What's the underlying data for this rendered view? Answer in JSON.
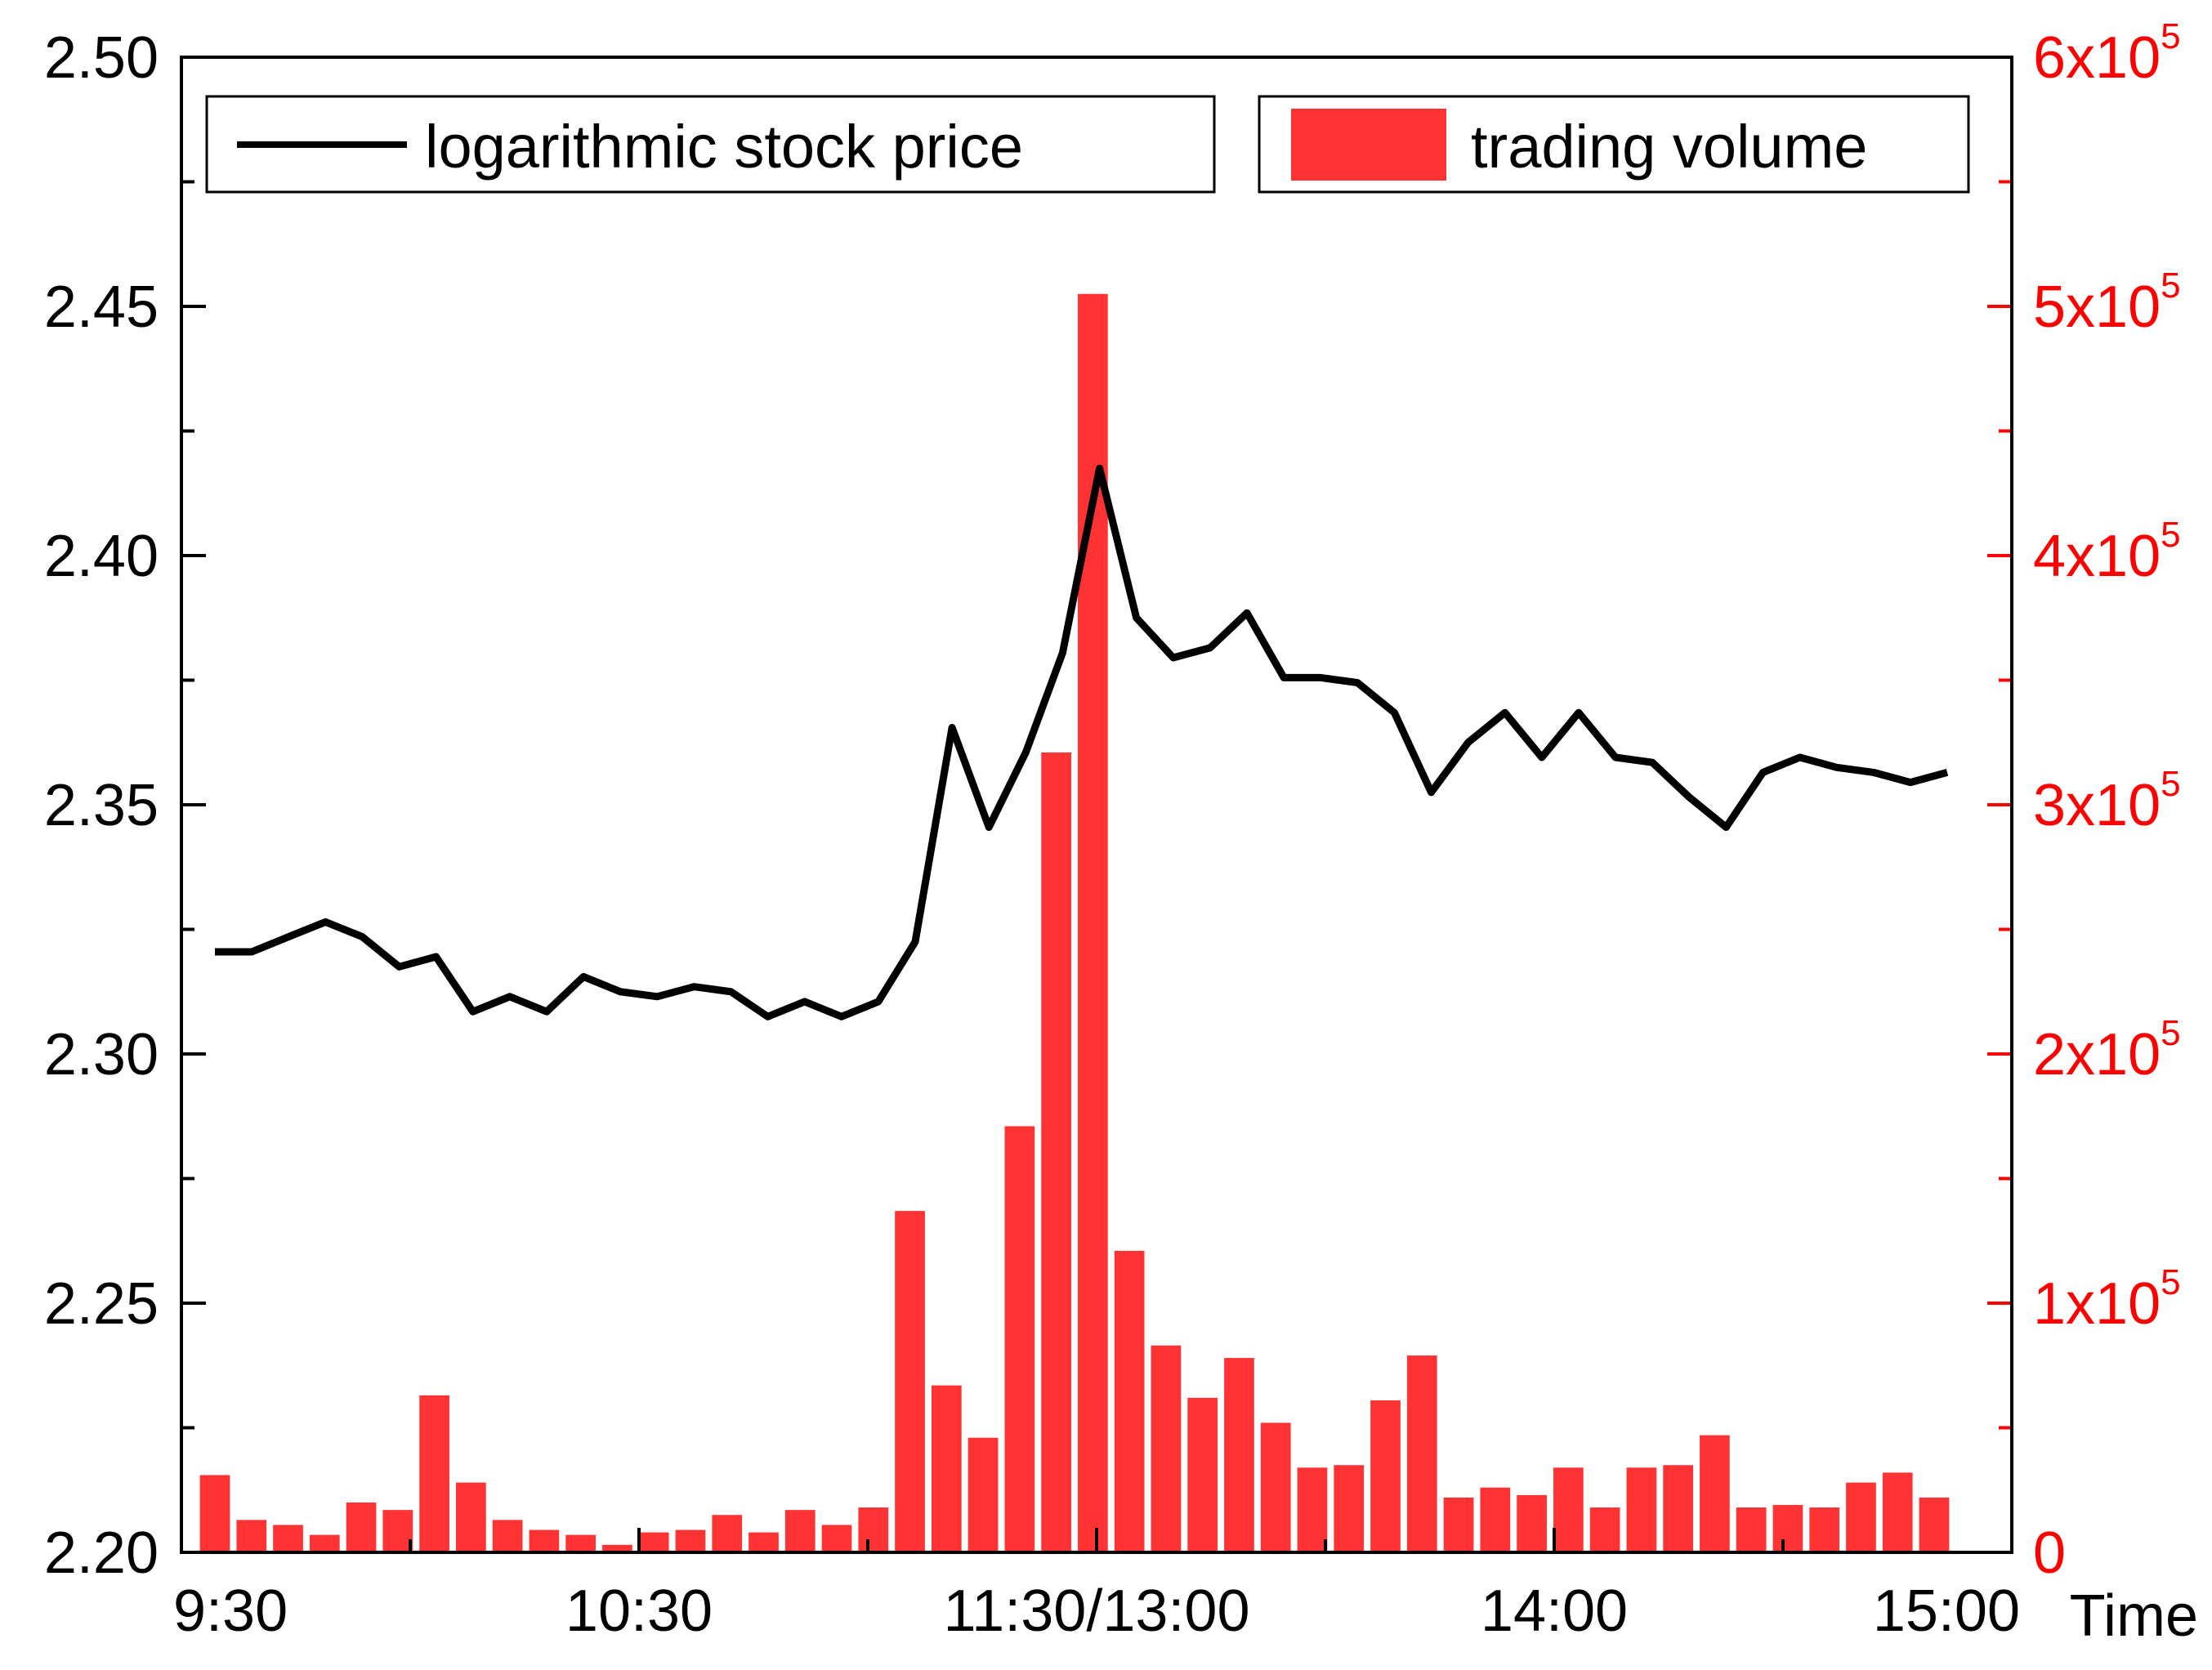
{
  "chart_data": {
    "type": "bar+line",
    "xlabel": "Time",
    "x_ticks": [
      "9:30",
      "10:30",
      "11:30/13:00",
      "14:00",
      "15:00"
    ],
    "y_left": {
      "ylim": [
        2.2,
        2.5
      ],
      "ticks": [
        "2.20",
        "2.25",
        "2.30",
        "2.35",
        "2.40",
        "2.45",
        "2.50"
      ]
    },
    "y_right": {
      "ylim": [
        0,
        600000
      ],
      "ticks": [
        {
          "base": "0",
          "exp": ""
        },
        {
          "base": "1x10",
          "exp": "5"
        },
        {
          "base": "2x10",
          "exp": "5"
        },
        {
          "base": "3x10",
          "exp": "5"
        },
        {
          "base": "4x10",
          "exp": "5"
        },
        {
          "base": "5x10",
          "exp": "5"
        },
        {
          "base": "6x10",
          "exp": "5"
        }
      ],
      "color": "#ff0000"
    },
    "legend": {
      "placement": "top",
      "entries": [
        "logarithmic stock price",
        "trading volume"
      ]
    },
    "series": [
      {
        "name": "logarithmic stock price",
        "type": "line",
        "color": "#000000",
        "values": [
          2.3205,
          2.3205,
          2.3235,
          2.3265,
          2.3235,
          2.3175,
          2.3195,
          2.3085,
          2.3115,
          2.3085,
          2.3155,
          2.3125,
          2.3115,
          2.3135,
          2.3125,
          2.3075,
          2.3105,
          2.3075,
          2.3105,
          2.3225,
          2.3655,
          2.3455,
          2.3605,
          2.3805,
          2.4175,
          2.3875,
          2.3795,
          2.3815,
          2.3885,
          2.3755,
          2.3755,
          2.3745,
          2.3685,
          2.3525,
          2.3625,
          2.3685,
          2.3595,
          2.3685,
          2.3595,
          2.3585,
          2.3515,
          2.3455,
          2.3565,
          2.3595,
          2.3575,
          2.3565,
          2.3545,
          2.3565
        ]
      },
      {
        "name": "trading volume",
        "type": "bar",
        "color": "#ff3333",
        "values": [
          31000,
          13000,
          11000,
          7000,
          20000,
          17000,
          63000,
          28000,
          13000,
          9000,
          7000,
          3000,
          8000,
          9000,
          15000,
          8000,
          17000,
          11000,
          18000,
          137000,
          67000,
          46000,
          171000,
          321000,
          505000,
          121000,
          83000,
          62000,
          78000,
          52000,
          34000,
          35000,
          61000,
          79000,
          22000,
          26000,
          23000,
          34000,
          18000,
          34000,
          35000,
          47000,
          18000,
          19000,
          18000,
          28000,
          32000,
          22000
        ]
      }
    ]
  }
}
